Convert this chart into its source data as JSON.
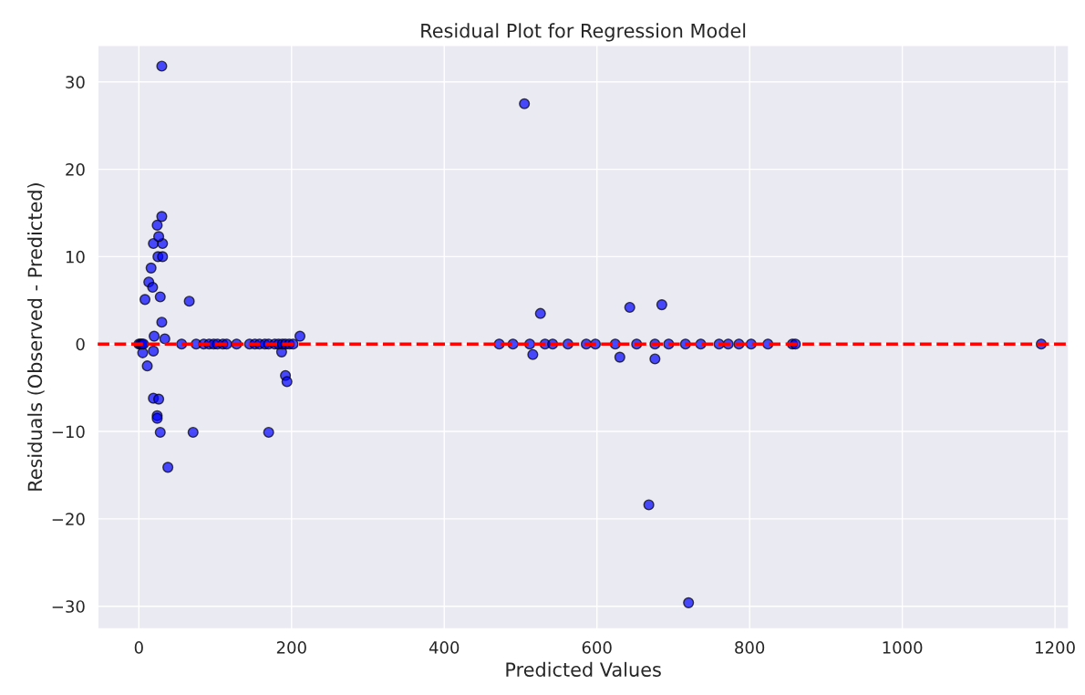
{
  "chart_data": {
    "type": "scatter",
    "title": "Residual Plot for Regression Model",
    "xlabel": "Predicted Values",
    "ylabel": "Residuals (Observed - Predicted)",
    "series": [
      {
        "color": "#0000ff",
        "x": [
          30,
          30,
          24,
          19,
          31,
          26,
          25,
          31,
          16,
          13,
          18,
          8,
          28,
          66,
          30,
          20,
          34,
          19,
          5,
          11,
          19,
          26,
          24,
          24,
          28,
          71,
          170,
          38,
          192,
          194,
          187,
          211,
          0,
          2,
          4,
          6,
          56,
          75,
          85,
          92,
          98,
          103,
          110,
          115,
          128,
          145,
          152,
          158,
          165,
          170,
          178,
          183,
          188,
          192,
          197,
          202,
          472,
          490,
          512,
          532,
          542,
          562,
          586,
          598,
          624,
          652,
          676,
          694,
          716,
          736,
          760,
          772,
          786,
          802,
          824,
          856,
          860,
          1182,
          526,
          516,
          643,
          685,
          630,
          676,
          505,
          668,
          720
        ],
        "values": [
          31.8,
          14.6,
          13.6,
          11.5,
          11.5,
          12.3,
          10,
          10,
          8.7,
          7.1,
          6.5,
          5.1,
          5.4,
          4.9,
          2.5,
          0.9,
          0.6,
          -0.8,
          -1,
          -2.5,
          -6.2,
          -6.3,
          -8.2,
          -8.5,
          -10.1,
          -10.1,
          -10.1,
          -14.1,
          -3.6,
          -4.3,
          -0.9,
          0.9,
          0,
          0,
          0,
          0,
          0,
          0,
          0,
          0,
          0,
          0,
          0,
          0,
          0,
          0,
          0,
          0,
          0,
          0,
          0,
          0,
          0,
          0,
          0,
          0,
          0,
          0,
          0,
          0,
          0,
          0,
          0,
          0,
          0,
          0,
          0,
          0,
          0,
          0,
          0,
          0,
          0,
          0,
          0,
          0,
          0,
          0,
          3.5,
          -1.2,
          4.2,
          4.5,
          -1.5,
          -1.7,
          27.5,
          -18.4,
          -29.6
        ]
      }
    ],
    "xlim": [
      -54,
      1218
    ],
    "ylim": [
      -32.6,
      34.2
    ],
    "xticks": [
      0,
      200,
      400,
      600,
      800,
      1000,
      1200
    ],
    "yticks": [
      -30,
      -20,
      -10,
      0,
      10,
      20,
      30
    ],
    "grid": true,
    "marker": "circle",
    "legend": false,
    "ref_lines": [
      {
        "axis": "y",
        "value": 0,
        "color": "#ff0000",
        "line_style": "dashed"
      }
    ]
  }
}
